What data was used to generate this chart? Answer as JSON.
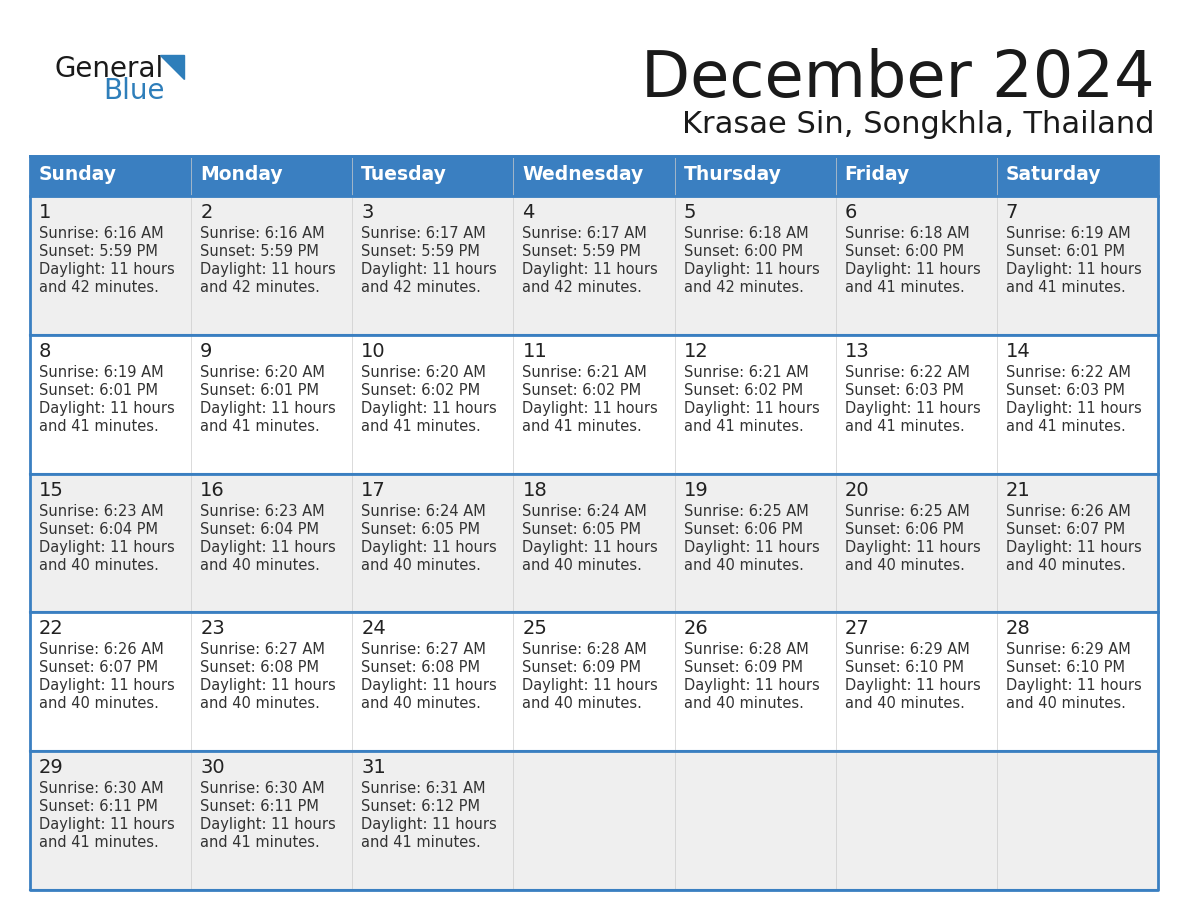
{
  "title": "December 2024",
  "subtitle": "Krasae Sin, Songkhla, Thailand",
  "days_of_week": [
    "Sunday",
    "Monday",
    "Tuesday",
    "Wednesday",
    "Thursday",
    "Friday",
    "Saturday"
  ],
  "header_bg": "#3a7fc1",
  "header_text": "#ffffff",
  "row_bg_odd": "#efefef",
  "row_bg_even": "#ffffff",
  "border_color": "#3a7fc1",
  "day_text_color": "#222222",
  "info_text_color": "#333333",
  "title_color": "#1a1a1a",
  "subtitle_color": "#1a1a1a",
  "logo_general_color": "#1a1a1a",
  "logo_blue_color": "#2e7eba",
  "weeks": [
    {
      "days": [
        {
          "date": 1,
          "sunrise": "6:16 AM",
          "sunset": "5:59 PM",
          "daylight_hours": 11,
          "daylight_minutes": 42
        },
        {
          "date": 2,
          "sunrise": "6:16 AM",
          "sunset": "5:59 PM",
          "daylight_hours": 11,
          "daylight_minutes": 42
        },
        {
          "date": 3,
          "sunrise": "6:17 AM",
          "sunset": "5:59 PM",
          "daylight_hours": 11,
          "daylight_minutes": 42
        },
        {
          "date": 4,
          "sunrise": "6:17 AM",
          "sunset": "5:59 PM",
          "daylight_hours": 11,
          "daylight_minutes": 42
        },
        {
          "date": 5,
          "sunrise": "6:18 AM",
          "sunset": "6:00 PM",
          "daylight_hours": 11,
          "daylight_minutes": 42
        },
        {
          "date": 6,
          "sunrise": "6:18 AM",
          "sunset": "6:00 PM",
          "daylight_hours": 11,
          "daylight_minutes": 41
        },
        {
          "date": 7,
          "sunrise": "6:19 AM",
          "sunset": "6:01 PM",
          "daylight_hours": 11,
          "daylight_minutes": 41
        }
      ]
    },
    {
      "days": [
        {
          "date": 8,
          "sunrise": "6:19 AM",
          "sunset": "6:01 PM",
          "daylight_hours": 11,
          "daylight_minutes": 41
        },
        {
          "date": 9,
          "sunrise": "6:20 AM",
          "sunset": "6:01 PM",
          "daylight_hours": 11,
          "daylight_minutes": 41
        },
        {
          "date": 10,
          "sunrise": "6:20 AM",
          "sunset": "6:02 PM",
          "daylight_hours": 11,
          "daylight_minutes": 41
        },
        {
          "date": 11,
          "sunrise": "6:21 AM",
          "sunset": "6:02 PM",
          "daylight_hours": 11,
          "daylight_minutes": 41
        },
        {
          "date": 12,
          "sunrise": "6:21 AM",
          "sunset": "6:02 PM",
          "daylight_hours": 11,
          "daylight_minutes": 41
        },
        {
          "date": 13,
          "sunrise": "6:22 AM",
          "sunset": "6:03 PM",
          "daylight_hours": 11,
          "daylight_minutes": 41
        },
        {
          "date": 14,
          "sunrise": "6:22 AM",
          "sunset": "6:03 PM",
          "daylight_hours": 11,
          "daylight_minutes": 41
        }
      ]
    },
    {
      "days": [
        {
          "date": 15,
          "sunrise": "6:23 AM",
          "sunset": "6:04 PM",
          "daylight_hours": 11,
          "daylight_minutes": 40
        },
        {
          "date": 16,
          "sunrise": "6:23 AM",
          "sunset": "6:04 PM",
          "daylight_hours": 11,
          "daylight_minutes": 40
        },
        {
          "date": 17,
          "sunrise": "6:24 AM",
          "sunset": "6:05 PM",
          "daylight_hours": 11,
          "daylight_minutes": 40
        },
        {
          "date": 18,
          "sunrise": "6:24 AM",
          "sunset": "6:05 PM",
          "daylight_hours": 11,
          "daylight_minutes": 40
        },
        {
          "date": 19,
          "sunrise": "6:25 AM",
          "sunset": "6:06 PM",
          "daylight_hours": 11,
          "daylight_minutes": 40
        },
        {
          "date": 20,
          "sunrise": "6:25 AM",
          "sunset": "6:06 PM",
          "daylight_hours": 11,
          "daylight_minutes": 40
        },
        {
          "date": 21,
          "sunrise": "6:26 AM",
          "sunset": "6:07 PM",
          "daylight_hours": 11,
          "daylight_minutes": 40
        }
      ]
    },
    {
      "days": [
        {
          "date": 22,
          "sunrise": "6:26 AM",
          "sunset": "6:07 PM",
          "daylight_hours": 11,
          "daylight_minutes": 40
        },
        {
          "date": 23,
          "sunrise": "6:27 AM",
          "sunset": "6:08 PM",
          "daylight_hours": 11,
          "daylight_minutes": 40
        },
        {
          "date": 24,
          "sunrise": "6:27 AM",
          "sunset": "6:08 PM",
          "daylight_hours": 11,
          "daylight_minutes": 40
        },
        {
          "date": 25,
          "sunrise": "6:28 AM",
          "sunset": "6:09 PM",
          "daylight_hours": 11,
          "daylight_minutes": 40
        },
        {
          "date": 26,
          "sunrise": "6:28 AM",
          "sunset": "6:09 PM",
          "daylight_hours": 11,
          "daylight_minutes": 40
        },
        {
          "date": 27,
          "sunrise": "6:29 AM",
          "sunset": "6:10 PM",
          "daylight_hours": 11,
          "daylight_minutes": 40
        },
        {
          "date": 28,
          "sunrise": "6:29 AM",
          "sunset": "6:10 PM",
          "daylight_hours": 11,
          "daylight_minutes": 40
        }
      ]
    },
    {
      "days": [
        {
          "date": 29,
          "sunrise": "6:30 AM",
          "sunset": "6:11 PM",
          "daylight_hours": 11,
          "daylight_minutes": 41
        },
        {
          "date": 30,
          "sunrise": "6:30 AM",
          "sunset": "6:11 PM",
          "daylight_hours": 11,
          "daylight_minutes": 41
        },
        {
          "date": 31,
          "sunrise": "6:31 AM",
          "sunset": "6:12 PM",
          "daylight_hours": 11,
          "daylight_minutes": 41
        },
        null,
        null,
        null,
        null
      ]
    }
  ]
}
